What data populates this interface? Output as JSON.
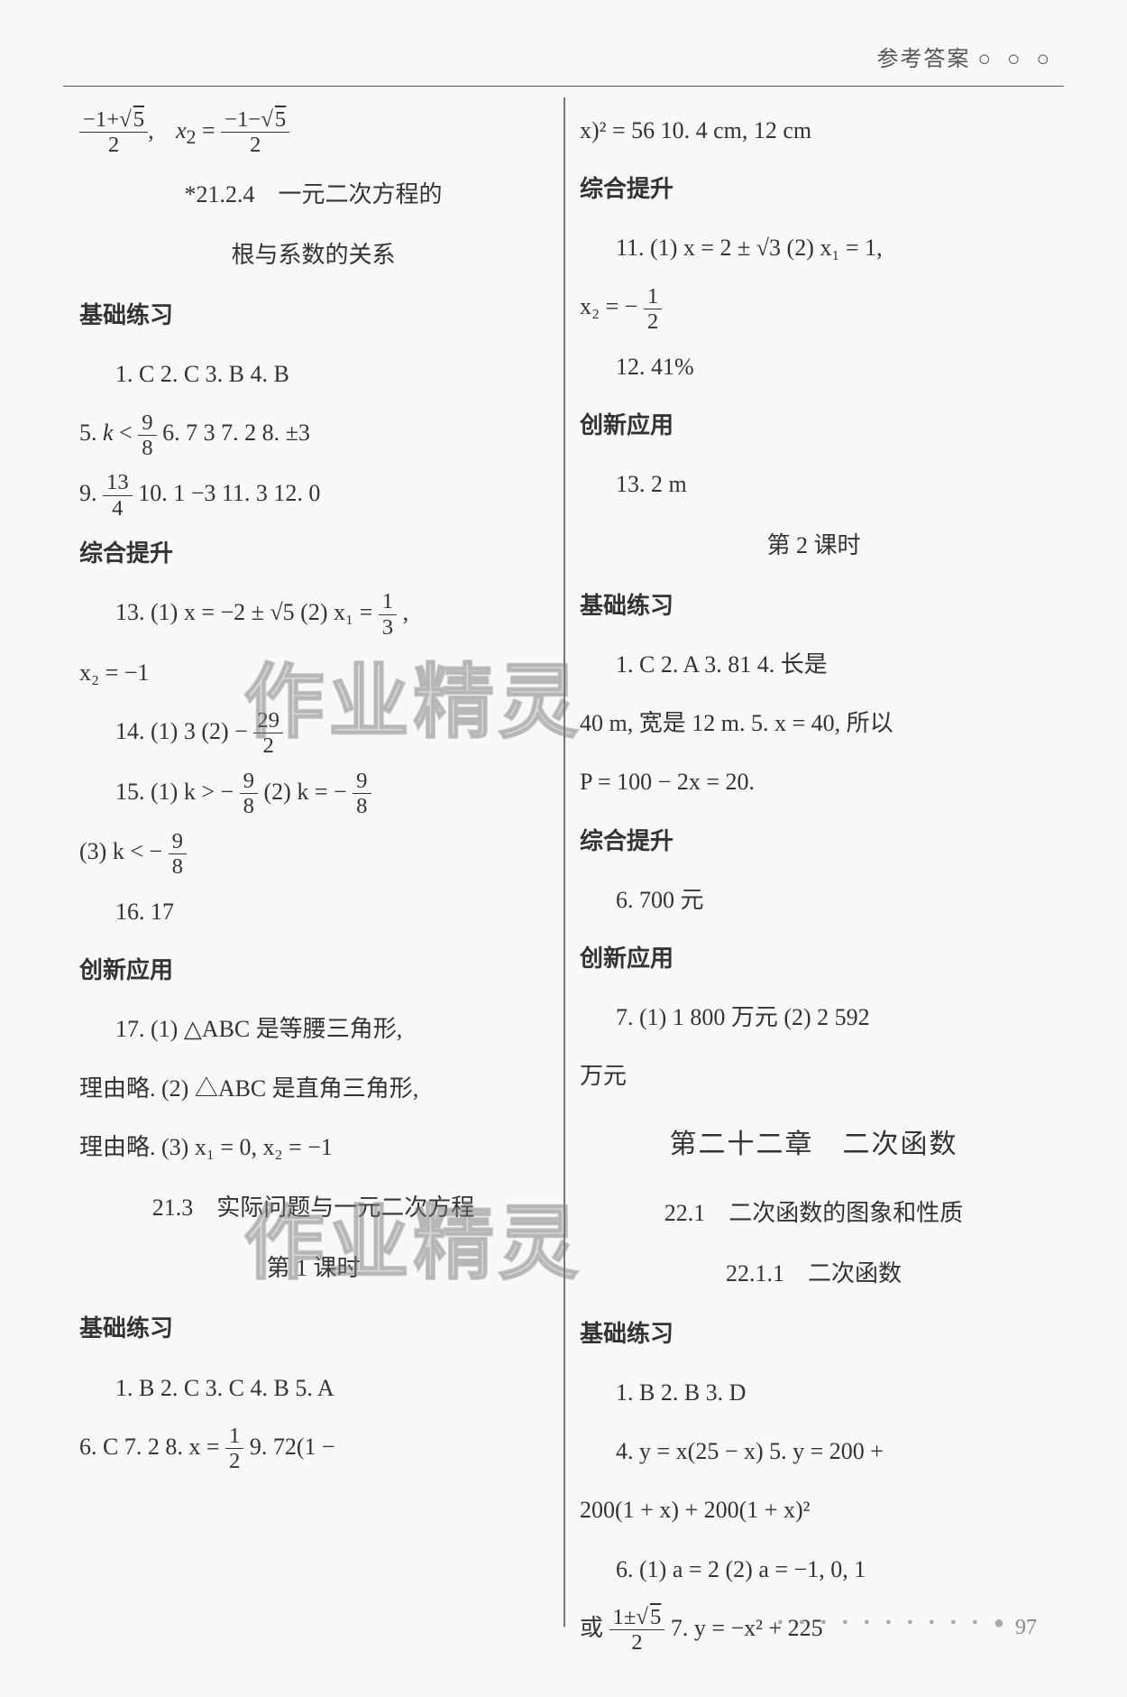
{
  "header": {
    "title": "参考答案",
    "marks": "○ ○ ○"
  },
  "page_number": "97",
  "watermark_text": "作业精灵",
  "left": {
    "l1": "(−1+√5)/2,  x₂ = (−1−√5)/2",
    "l2": "*21.2.4　一元二次方程的",
    "l3": "根与系数的关系",
    "sec1": "基础练习",
    "l4": "1. C   2. C   3. B   4. B",
    "l5a": "5. ",
    "l5b": "k < 9/8",
    "l5c": "   6. 7   3   7. 2   8. ±3",
    "l6a": "9. ",
    "l6b": "13/4",
    "l6c": "   10. 1   −3   11. 3   12. 0",
    "sec2": "综合提升",
    "l7a": "13. (1) x = −2 ± √5   (2) x₁ = ",
    "l7b": "1/3",
    "l7c": ",",
    "l8": "x₂ = −1",
    "l9a": "14. (1) 3   (2) − ",
    "l9b": "29/2",
    "l10a": "15. (1) k > − ",
    "l10b": "9/8",
    "l10c": "   (2) k = − ",
    "l10d": "9/8",
    "l11a": "(3) k < − ",
    "l11b": "9/8",
    "l12": "16. 17",
    "sec3": "创新应用",
    "l13": "17. (1) △ABC 是等腰三角形,",
    "l14": "理由略.   (2) △ABC 是直角三角形,",
    "l15": "理由略.   (3) x₁ = 0,  x₂ = −1",
    "l16": "21.3　实际问题与一元二次方程",
    "l17": "第 1 课时",
    "sec4": "基础练习",
    "l18": "1. B   2. C   3. C   4. B   5. A",
    "l19a": "6. C   7. 2   8. x = ",
    "l19b": "1/2",
    "l19c": "   9. 72(1 −"
  },
  "right": {
    "r1": "x)² = 56   10. 4 cm, 12 cm",
    "rsec1": "综合提升",
    "r2": "11. (1) x = 2 ± √3   (2) x₁ = 1,",
    "r3a": "x₂ = − ",
    "r3b": "1/2",
    "r4": "12. 41%",
    "rsec2": "创新应用",
    "r5": "13. 2 m",
    "r6": "第 2 课时",
    "rsec3": "基础练习",
    "r7": "1. C   2. A   3. 81   4. 长是",
    "r8": "40 m, 宽是 12 m.   5. x = 40, 所以",
    "r9": "P = 100 − 2x = 20.",
    "rsec4": "综合提升",
    "r10": "6. 700 元",
    "rsec5": "创新应用",
    "r11": "7. (1) 1 800 万元   (2) 2 592",
    "r12": "万元",
    "chapter": "第二十二章　二次函数",
    "r13": "22.1　二次函数的图象和性质",
    "r14": "22.1.1　二次函数",
    "rsec6": "基础练习",
    "r15": "1. B   2. B   3. D",
    "r16": "4. y = x(25 − x)   5. y = 200 +",
    "r17": "200(1 + x) + 200(1 + x)²",
    "r18": "6. (1) a = 2   (2) a = −1, 0, 1",
    "r19a": "或 ",
    "r19b": "(1±√5)/2",
    "r19c": "   7. y = −x² + 225"
  }
}
